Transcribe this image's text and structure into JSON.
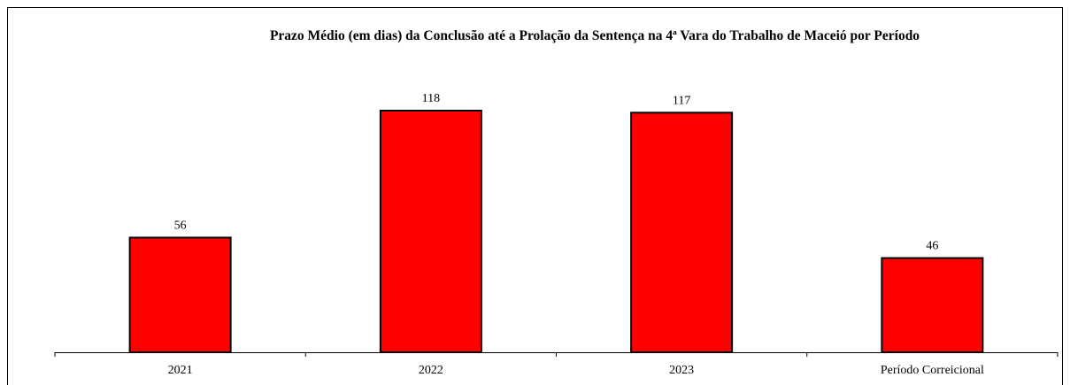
{
  "chart_data": {
    "type": "bar",
    "title": "Prazo Médio (em dias) da Conclusão até a Prolação da Sentença na 4ª Vara do Trabalho de Maceió por Período",
    "categories": [
      "2021",
      "2022",
      "2023",
      "Período Correicional"
    ],
    "values": [
      56,
      118,
      117,
      46
    ],
    "color": "#ff0000"
  }
}
